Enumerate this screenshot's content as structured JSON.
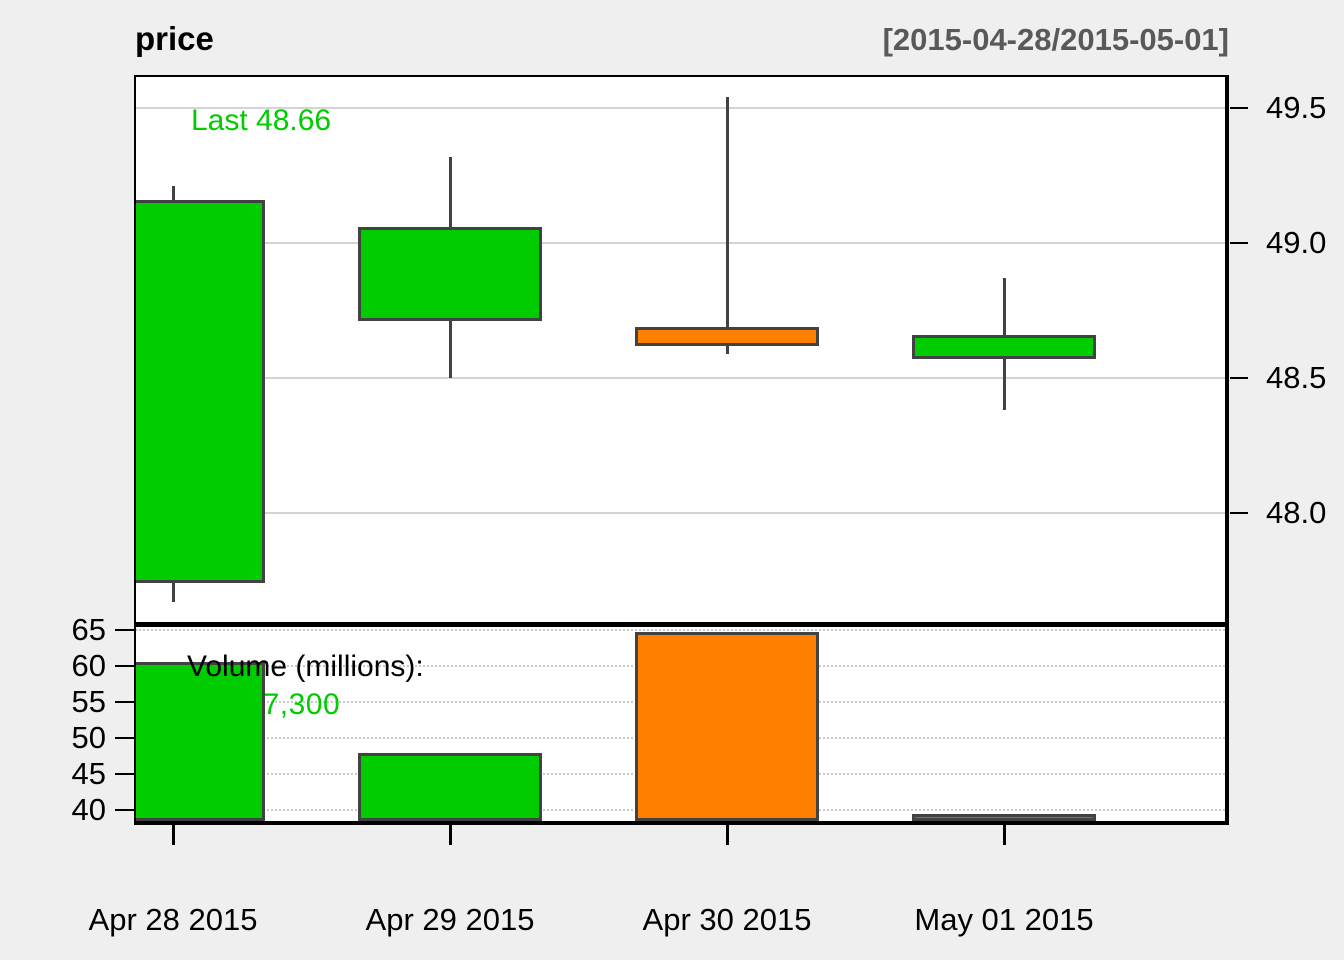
{
  "header": {
    "title": "price",
    "range": "[2015-04-28/2015-05-01]"
  },
  "price_panel": {
    "last_label": "Last 48.66"
  },
  "volume_panel": {
    "legend_label": "Volume (millions):",
    "legend_value": "38,787,300"
  },
  "colors": {
    "up": "#00CC00",
    "down": "#FF7F00",
    "candle_border": "#424242",
    "grid_solid": "#D4D4D4",
    "grid_dotted": "#C9C9C9",
    "background": "#EFEFEF",
    "panel_background": "#FFFFFF",
    "axis_text": "#000000",
    "range_text": "#595959",
    "last_text": "#00CC00",
    "volume_value_text": "#00CC00"
  },
  "chart_data": {
    "type": "candlestick",
    "title": "price",
    "subtitle": "[2015-04-28/2015-05-01]",
    "last": 48.66,
    "categories": [
      "Apr 28 2015",
      "Apr 29 2015",
      "Apr 30 2015",
      "May 01 2015"
    ],
    "candles": [
      {
        "date": "Apr 28 2015",
        "open": 47.74,
        "high": 49.21,
        "low": 47.67,
        "close": 49.16,
        "volume_millions": 60.6,
        "direction": "up"
      },
      {
        "date": "Apr 29 2015",
        "open": 48.71,
        "high": 49.32,
        "low": 48.5,
        "close": 49.06,
        "volume_millions": 47.9,
        "direction": "up"
      },
      {
        "date": "Apr 30 2015",
        "open": 48.69,
        "high": 49.54,
        "low": 48.59,
        "close": 48.62,
        "volume_millions": 64.7,
        "direction": "down"
      },
      {
        "date": "May 01 2015",
        "open": 48.57,
        "high": 48.87,
        "low": 48.38,
        "close": 48.66,
        "volume_millions": 38.8,
        "direction": "up"
      }
    ],
    "price_axis": {
      "position": "right",
      "ticks": [
        "49.5",
        "49.0",
        "48.5",
        "48.0"
      ],
      "tick_values": [
        49.5,
        49.0,
        48.5,
        48.0
      ],
      "range": [
        47.6,
        49.62
      ],
      "grid": "solid"
    },
    "volume_axis": {
      "position": "left",
      "label": "Volume (millions):",
      "last_volume": "38,787,300",
      "ticks": [
        "65",
        "60",
        "55",
        "50",
        "45",
        "40"
      ],
      "tick_values": [
        65,
        60,
        55,
        50,
        45,
        40
      ],
      "range": [
        38.1,
        65.9
      ],
      "grid": "dotted"
    }
  }
}
